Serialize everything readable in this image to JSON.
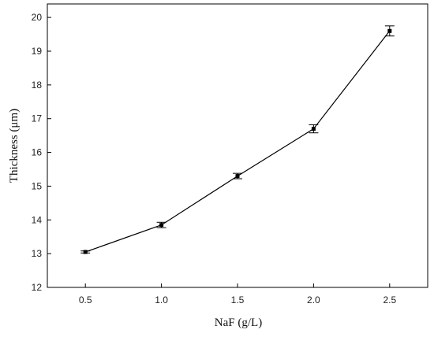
{
  "chart_data": {
    "type": "line",
    "xlabel": "NaF (g/L)",
    "ylabel": "Thickness (μm)",
    "x": [
      0.5,
      1.0,
      1.5,
      2.0,
      2.5
    ],
    "x_tick_labels": [
      "0.5",
      "1.0",
      "1.5",
      "2.0",
      "2.5"
    ],
    "y_tick_labels": [
      "12",
      "13",
      "14",
      "15",
      "16",
      "17",
      "18",
      "19",
      "20"
    ],
    "xlim": [
      0.25,
      2.75
    ],
    "ylim": [
      12,
      20.4
    ],
    "grid": false,
    "series": [
      {
        "values": [
          13.05,
          13.85,
          15.3,
          16.7,
          19.6
        ],
        "error": [
          0.03,
          0.08,
          0.08,
          0.12,
          0.15
        ],
        "color": "#000000",
        "marker": "square"
      }
    ]
  }
}
